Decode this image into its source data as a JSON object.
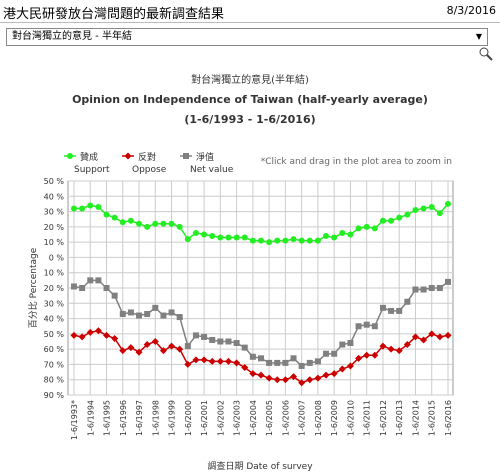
{
  "header": {
    "title": "港大民研發放台灣問題的最新調查結果",
    "date": "8/3/2016",
    "dropdown": "對台灣獨立的意見 - 半年結"
  },
  "chart_data": {
    "type": "line",
    "title": "對台灣獨立的意見(半年結)",
    "subtitle": "Opinion on Independence of Taiwan (half-yearly average)",
    "period": "(1-6/1993 - 1-6/2016)",
    "note": "*Click and drag in the plot area to zoom in",
    "ylabel": "百分比 Percentage",
    "xlabel": "調查日期 Date of survey",
    "categories": [
      "1-6/1993*",
      null,
      "1-6/1994",
      null,
      "1-6/1995",
      null,
      "1-6/1996",
      null,
      "1-6/1997",
      null,
      "1-6/1998",
      null,
      "1-6/1999",
      null,
      "1-6/2000",
      null,
      "1-6/2001",
      null,
      "1-6/2002",
      null,
      "1-6/2003",
      null,
      "1-6/2004",
      null,
      "1-6/2005",
      null,
      "1-6/2006",
      null,
      "1-6/2007",
      null,
      "1-6/2008",
      null,
      "1-6/2009",
      null,
      "1-6/2010",
      null,
      "1-6/2011",
      null,
      "1-6/2012",
      null,
      "1-6/2013",
      null,
      "1-6/2014",
      null,
      "1-6/2015",
      null,
      "1-6/2016"
    ],
    "series": [
      {
        "name": "贊成",
        "name_en": "Support",
        "color": "#22ee22",
        "marker": "circle",
        "values": [
          32,
          32,
          34,
          33,
          28,
          26,
          23,
          24,
          22,
          20,
          22,
          22,
          22,
          20,
          12,
          16,
          15,
          14,
          13,
          13,
          13,
          13,
          11,
          11,
          10,
          11,
          11,
          12,
          11,
          11,
          11,
          14,
          13,
          16,
          15,
          19,
          20,
          19,
          24,
          24,
          26,
          28,
          31,
          32,
          33,
          29,
          35
        ]
      },
      {
        "name": "反對",
        "name_en": "Oppose",
        "color": "#cc0000",
        "marker": "diamond",
        "values": [
          -51,
          -52,
          -49,
          -48,
          -51,
          -53,
          -61,
          -59,
          -62,
          -57,
          -55,
          -61,
          -58,
          -60,
          -70,
          -67,
          -67,
          -68,
          -68,
          -68,
          -69,
          -72,
          -76,
          -77,
          -79,
          -80,
          -80,
          -78,
          -82,
          -80,
          -79,
          -77,
          -76,
          -73,
          -71,
          -66,
          -64,
          -64,
          -58,
          -60,
          -61,
          -57,
          -52,
          -54,
          -50,
          -52,
          -51
        ]
      },
      {
        "name": "淨值",
        "name_en": "Net value",
        "color": "#808080",
        "marker": "square",
        "values": [
          -19,
          -20,
          -15,
          -15,
          -20,
          -25,
          -37,
          -36,
          -38,
          -37,
          -33,
          -38,
          -36,
          -39,
          -58,
          -51,
          -52,
          -54,
          -55,
          -55,
          -56,
          -59,
          -65,
          -66,
          -69,
          -69,
          -69,
          -66,
          -71,
          -69,
          -68,
          -63,
          -63,
          -57,
          -56,
          -45,
          -44,
          -45,
          -33,
          -35,
          -35,
          -29,
          -21,
          -21,
          -20,
          -20,
          -16
        ]
      }
    ],
    "ylim": [
      -90,
      50
    ],
    "yticks": [
      {
        "value": 50,
        "label": "50 %"
      },
      {
        "value": 40,
        "label": "40 %"
      },
      {
        "value": 30,
        "label": "30 %"
      },
      {
        "value": 20,
        "label": "20 %"
      },
      {
        "value": 10,
        "label": "10 %"
      },
      {
        "value": 0,
        "label": "0 %"
      },
      {
        "value": -10,
        "label": "10 %"
      },
      {
        "value": -20,
        "label": "20 %"
      },
      {
        "value": -30,
        "label": "30 %"
      },
      {
        "value": -40,
        "label": "40 %"
      },
      {
        "value": -50,
        "label": "50 %"
      },
      {
        "value": -60,
        "label": "60 %"
      },
      {
        "value": -70,
        "label": "70 %"
      },
      {
        "value": -80,
        "label": "80 %"
      },
      {
        "value": -90,
        "label": "90 %"
      }
    ],
    "grid": true,
    "legend": "top-left"
  }
}
